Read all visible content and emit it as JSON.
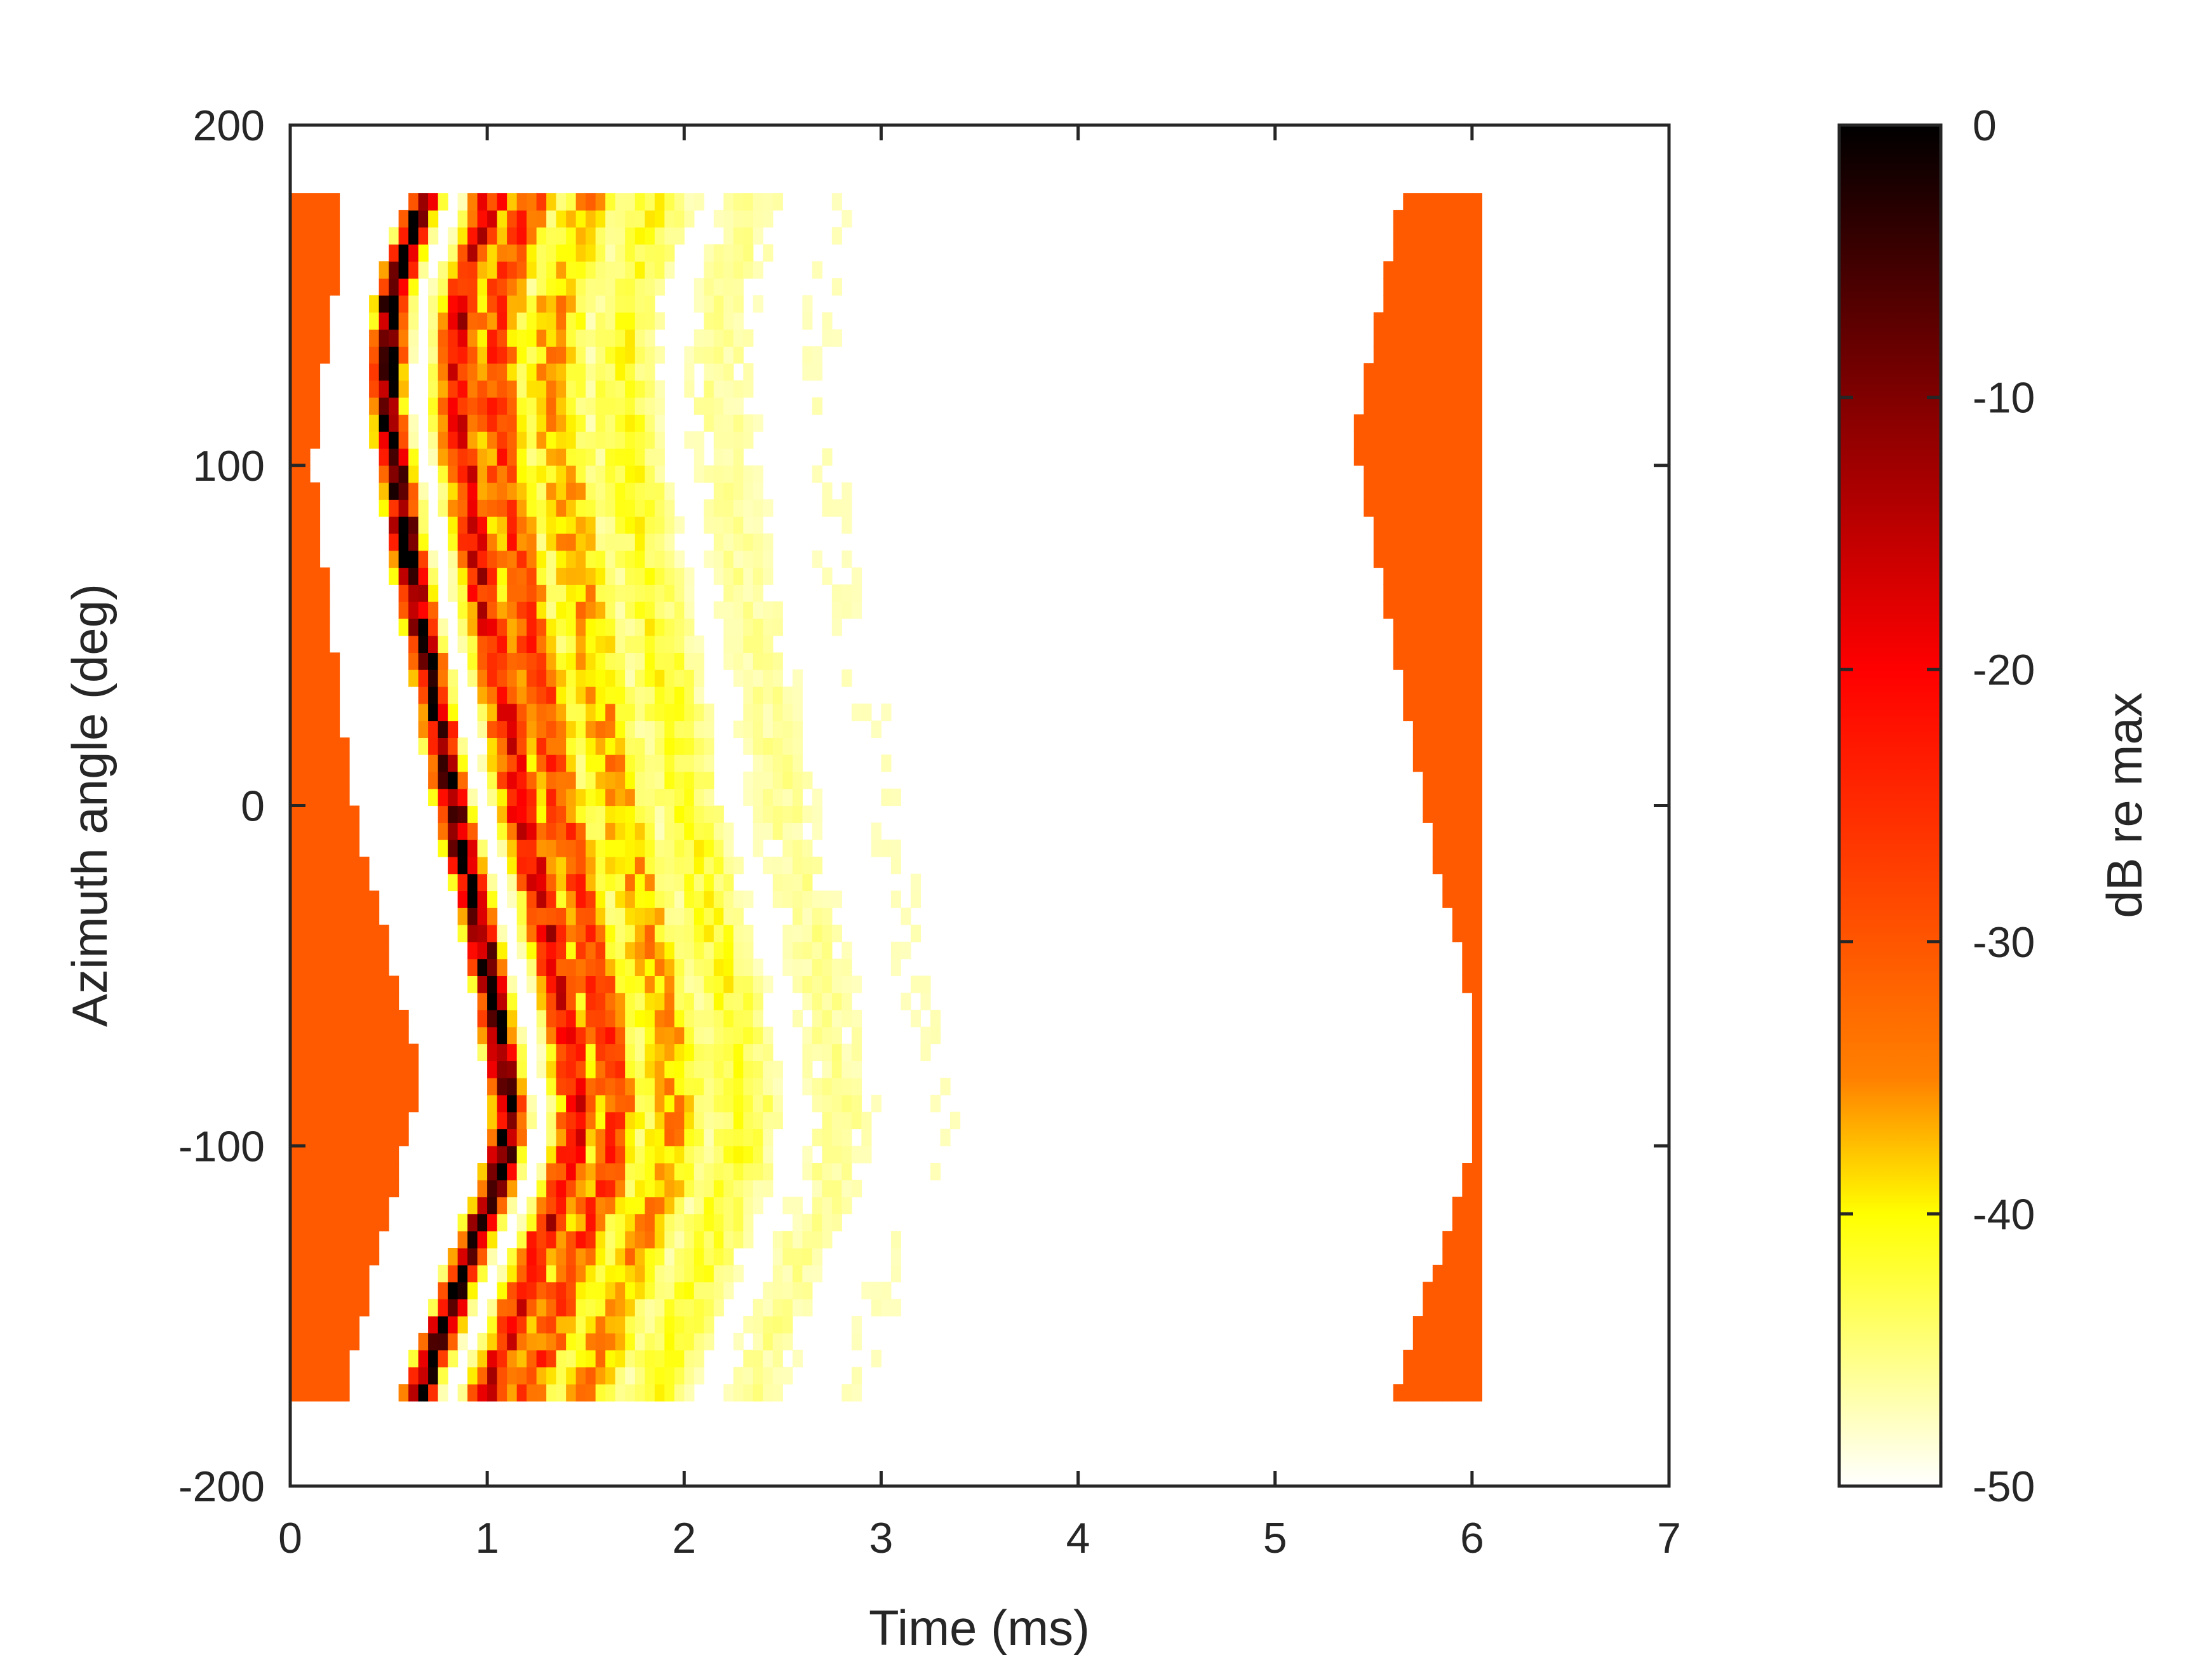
{
  "chart_data": {
    "type": "heatmap",
    "title": "",
    "xlabel": "Time (ms)",
    "ylabel": "Azimuth angle (deg)",
    "xlim": [
      0,
      7
    ],
    "ylim": [
      -200,
      200
    ],
    "x_ticks": [
      0,
      1,
      2,
      3,
      4,
      5,
      6,
      7
    ],
    "y_ticks": [
      -200,
      -100,
      0,
      100,
      200
    ],
    "colorbar": {
      "label": "dB re max",
      "range": [
        -50,
        0
      ],
      "ticks": [
        0,
        -10,
        -20,
        -30,
        -40,
        -50
      ],
      "colormap": "hot (reversed)",
      "colors": [
        "#ffffff",
        "#ffff80",
        "#ffff00",
        "#ff8000",
        "#ff0000",
        "#800000",
        "#000000"
      ]
    },
    "grid": false,
    "data_extent": {
      "time_ms": [
        0,
        6.02
      ],
      "azimuth_deg": [
        -175,
        180
      ]
    },
    "data_features": {
      "direct_arrival_time_ms": [
        [
          180,
          0.69
        ],
        [
          150,
          0.52
        ],
        [
          120,
          0.49
        ],
        [
          90,
          0.56
        ],
        [
          60,
          0.64
        ],
        [
          30,
          0.74
        ],
        [
          0,
          0.82
        ],
        [
          -30,
          0.94
        ],
        [
          -60,
          1.04
        ],
        [
          -90,
          1.12
        ],
        [
          -110,
          1.06
        ],
        [
          -130,
          0.92
        ],
        [
          -150,
          0.8
        ],
        [
          -175,
          0.64
        ]
      ],
      "reflection_offsets_ms": [
        0.17,
        0.35,
        0.55,
        0.85,
        1.2,
        1.7,
        2.2
      ],
      "min_level_region_left_edge_ms": [
        [
          180,
          0.28
        ],
        [
          100,
          0.12
        ],
        [
          0,
          0.32
        ],
        [
          -80,
          0.66
        ],
        [
          -175,
          0.27
        ]
      ],
      "min_level_region_right_ms": [
        [
          180,
          5.65
        ],
        [
          110,
          5.4
        ],
        [
          0,
          5.75
        ],
        [
          -60,
          6.0
        ],
        [
          -100,
          6.0
        ],
        [
          -175,
          5.6
        ]
      ]
    }
  }
}
